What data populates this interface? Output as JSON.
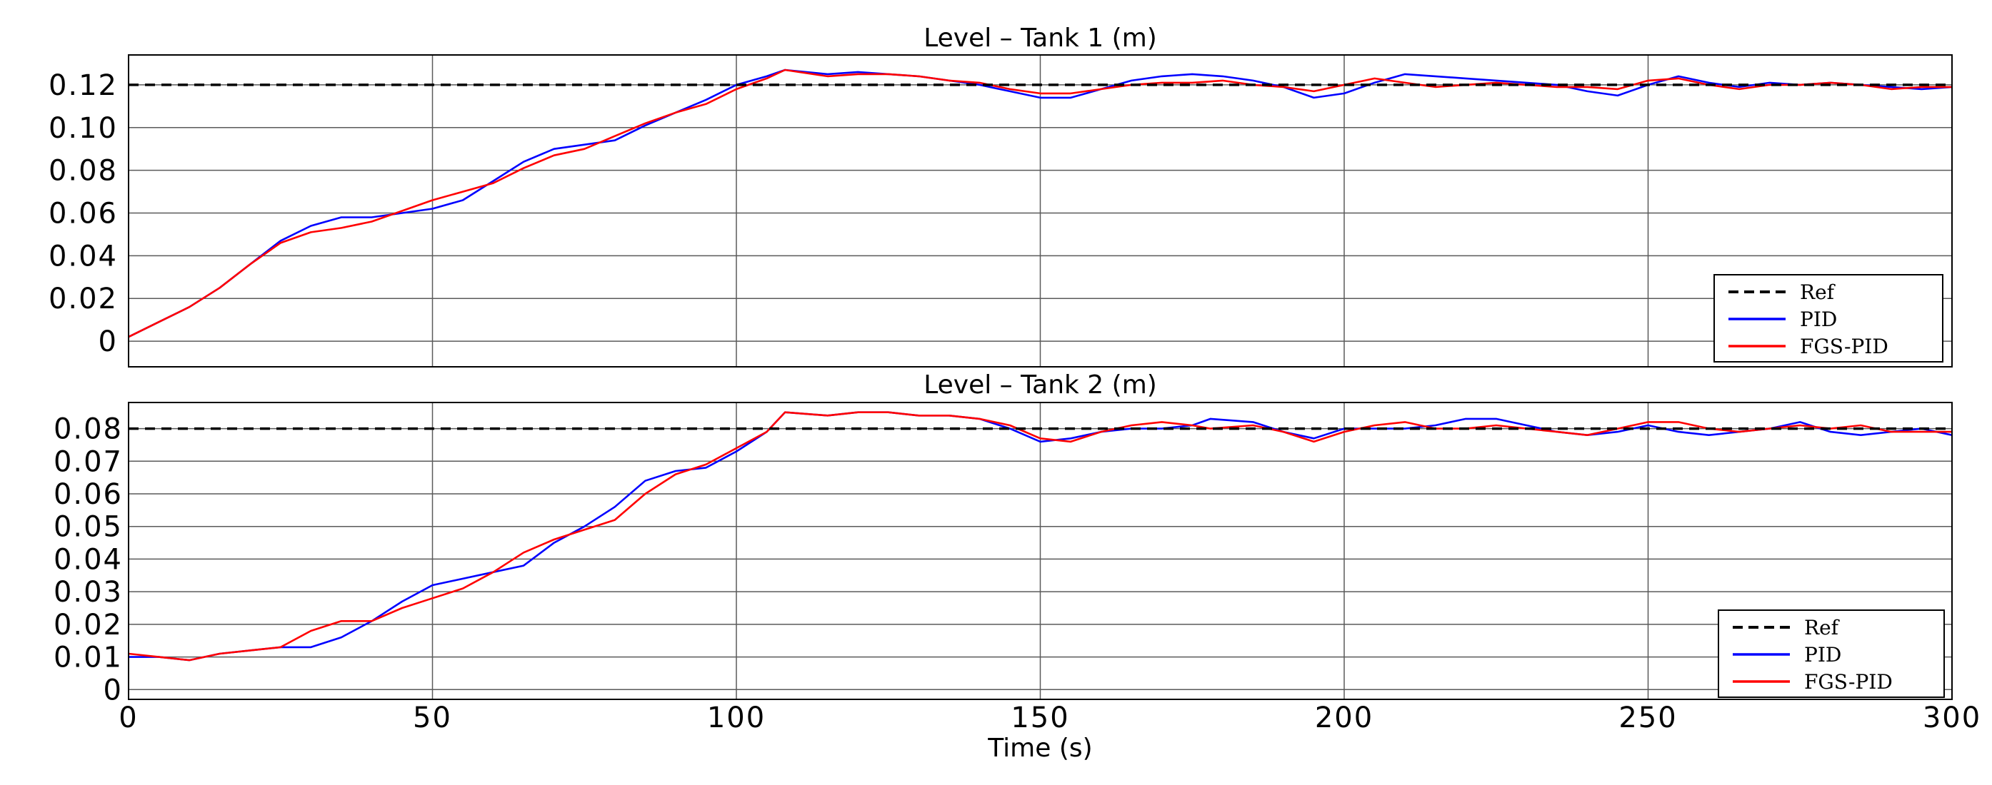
{
  "chart_data": [
    {
      "type": "line",
      "title": "Level – Tank 1 (m)",
      "xlabel": "",
      "ylabel": "",
      "xlim": [
        0,
        300
      ],
      "ylim": [
        -0.012,
        0.134
      ],
      "yticks": [
        0,
        0.02,
        0.04,
        0.06,
        0.08,
        0.1,
        0.12
      ],
      "ytick_labels": [
        "0",
        "0.02",
        "0.04",
        "0.06",
        "0.08",
        "0.10",
        "0.12"
      ],
      "xticks": [
        0,
        50,
        100,
        150,
        200,
        250,
        300
      ],
      "xtick_labels": [],
      "grid": true,
      "legend": "bottom-right",
      "series": [
        {
          "name": "Ref",
          "color": "#000000",
          "style": "dashed",
          "x": [
            0,
            300
          ],
          "y": [
            0.12,
            0.12
          ]
        },
        {
          "name": "PID",
          "color": "#0000ff",
          "style": "solid",
          "x": [
            0,
            5,
            10,
            15,
            20,
            25,
            30,
            35,
            40,
            45,
            50,
            55,
            60,
            65,
            70,
            75,
            80,
            85,
            90,
            95,
            100,
            105,
            108,
            115,
            120,
            125,
            130,
            135,
            140,
            145,
            150,
            155,
            160,
            165,
            170,
            175,
            180,
            185,
            190,
            195,
            200,
            205,
            210,
            215,
            220,
            225,
            230,
            235,
            240,
            245,
            250,
            255,
            260,
            265,
            270,
            275,
            280,
            285,
            290,
            295,
            300
          ],
          "y": [
            0.002,
            0.009,
            0.016,
            0.025,
            0.036,
            0.047,
            0.054,
            0.058,
            0.058,
            0.06,
            0.062,
            0.066,
            0.075,
            0.084,
            0.09,
            0.092,
            0.094,
            0.101,
            0.107,
            0.113,
            0.12,
            0.124,
            0.127,
            0.125,
            0.126,
            0.125,
            0.124,
            0.122,
            0.12,
            0.117,
            0.114,
            0.114,
            0.118,
            0.122,
            0.124,
            0.125,
            0.124,
            0.122,
            0.119,
            0.114,
            0.116,
            0.121,
            0.125,
            0.124,
            0.123,
            0.122,
            0.121,
            0.12,
            0.117,
            0.115,
            0.12,
            0.124,
            0.121,
            0.119,
            0.121,
            0.12,
            0.121,
            0.12,
            0.119,
            0.118,
            0.119
          ]
        },
        {
          "name": "FGS-PID",
          "color": "#ff0000",
          "style": "solid",
          "x": [
            0,
            5,
            10,
            15,
            20,
            25,
            30,
            35,
            40,
            45,
            50,
            55,
            60,
            65,
            70,
            75,
            80,
            85,
            90,
            95,
            100,
            105,
            108,
            115,
            120,
            125,
            130,
            135,
            140,
            145,
            150,
            155,
            160,
            165,
            170,
            175,
            180,
            185,
            190,
            195,
            200,
            205,
            210,
            215,
            220,
            225,
            230,
            235,
            240,
            245,
            250,
            255,
            260,
            265,
            270,
            275,
            280,
            285,
            290,
            295,
            300
          ],
          "y": [
            0.002,
            0.009,
            0.016,
            0.025,
            0.036,
            0.046,
            0.051,
            0.053,
            0.056,
            0.061,
            0.066,
            0.07,
            0.074,
            0.081,
            0.087,
            0.09,
            0.096,
            0.102,
            0.107,
            0.111,
            0.118,
            0.123,
            0.127,
            0.124,
            0.125,
            0.125,
            0.124,
            0.122,
            0.121,
            0.118,
            0.116,
            0.116,
            0.118,
            0.12,
            0.121,
            0.121,
            0.122,
            0.12,
            0.119,
            0.117,
            0.12,
            0.123,
            0.121,
            0.119,
            0.12,
            0.121,
            0.12,
            0.119,
            0.119,
            0.118,
            0.122,
            0.123,
            0.12,
            0.118,
            0.12,
            0.12,
            0.121,
            0.12,
            0.118,
            0.119,
            0.119
          ]
        }
      ]
    },
    {
      "type": "line",
      "title": "Level – Tank 2 (m)",
      "xlabel": "Time (s)",
      "ylabel": "",
      "xlim": [
        0,
        300
      ],
      "ylim": [
        -0.003,
        0.088
      ],
      "yticks": [
        0,
        0.01,
        0.02,
        0.03,
        0.04,
        0.05,
        0.06,
        0.07,
        0.08
      ],
      "ytick_labels": [
        "0",
        "0.01",
        "0.02",
        "0.03",
        "0.04",
        "0.05",
        "0.06",
        "0.07",
        "0.08"
      ],
      "xticks": [
        0,
        50,
        100,
        150,
        200,
        250,
        300
      ],
      "xtick_labels": [
        "0",
        "50",
        "100",
        "150",
        "200",
        "250",
        "300"
      ],
      "grid": true,
      "legend": "bottom-right",
      "series": [
        {
          "name": "Ref",
          "color": "#000000",
          "style": "dashed",
          "x": [
            0,
            300
          ],
          "y": [
            0.08,
            0.08
          ]
        },
        {
          "name": "PID",
          "color": "#0000ff",
          "style": "solid",
          "x": [
            0,
            5,
            10,
            15,
            20,
            25,
            30,
            35,
            40,
            45,
            50,
            55,
            60,
            65,
            70,
            75,
            80,
            85,
            90,
            95,
            100,
            105,
            108,
            115,
            120,
            125,
            130,
            135,
            140,
            145,
            150,
            155,
            160,
            165,
            170,
            175,
            178,
            185,
            190,
            195,
            200,
            205,
            210,
            215,
            220,
            225,
            230,
            235,
            240,
            245,
            250,
            255,
            260,
            265,
            270,
            275,
            280,
            285,
            290,
            295,
            300
          ],
          "y": [
            0.01,
            0.01,
            0.009,
            0.011,
            0.012,
            0.013,
            0.013,
            0.016,
            0.021,
            0.027,
            0.032,
            0.034,
            0.036,
            0.038,
            0.045,
            0.05,
            0.056,
            0.064,
            0.067,
            0.068,
            0.073,
            0.079,
            0.085,
            0.084,
            0.085,
            0.085,
            0.084,
            0.084,
            0.083,
            0.08,
            0.076,
            0.077,
            0.079,
            0.08,
            0.08,
            0.081,
            0.083,
            0.082,
            0.079,
            0.077,
            0.08,
            0.08,
            0.08,
            0.081,
            0.083,
            0.083,
            0.081,
            0.079,
            0.078,
            0.079,
            0.081,
            0.079,
            0.078,
            0.079,
            0.08,
            0.082,
            0.079,
            0.078,
            0.079,
            0.08,
            0.078
          ]
        },
        {
          "name": "FGS-PID",
          "color": "#ff0000",
          "style": "solid",
          "x": [
            0,
            5,
            10,
            15,
            20,
            25,
            30,
            35,
            40,
            45,
            50,
            55,
            60,
            65,
            70,
            75,
            80,
            85,
            90,
            95,
            100,
            105,
            108,
            115,
            120,
            125,
            130,
            135,
            140,
            145,
            150,
            155,
            160,
            165,
            170,
            175,
            178,
            185,
            190,
            195,
            200,
            205,
            210,
            215,
            220,
            225,
            230,
            235,
            240,
            245,
            250,
            255,
            260,
            265,
            270,
            275,
            280,
            285,
            290,
            295,
            300
          ],
          "y": [
            0.011,
            0.01,
            0.009,
            0.011,
            0.012,
            0.013,
            0.018,
            0.021,
            0.021,
            0.025,
            0.028,
            0.031,
            0.036,
            0.042,
            0.046,
            0.049,
            0.052,
            0.06,
            0.066,
            0.069,
            0.074,
            0.079,
            0.085,
            0.084,
            0.085,
            0.085,
            0.084,
            0.084,
            0.083,
            0.081,
            0.077,
            0.076,
            0.079,
            0.081,
            0.082,
            0.081,
            0.08,
            0.081,
            0.079,
            0.076,
            0.079,
            0.081,
            0.082,
            0.08,
            0.08,
            0.081,
            0.08,
            0.079,
            0.078,
            0.08,
            0.082,
            0.082,
            0.08,
            0.079,
            0.08,
            0.081,
            0.08,
            0.081,
            0.079,
            0.079,
            0.079
          ]
        }
      ]
    }
  ]
}
